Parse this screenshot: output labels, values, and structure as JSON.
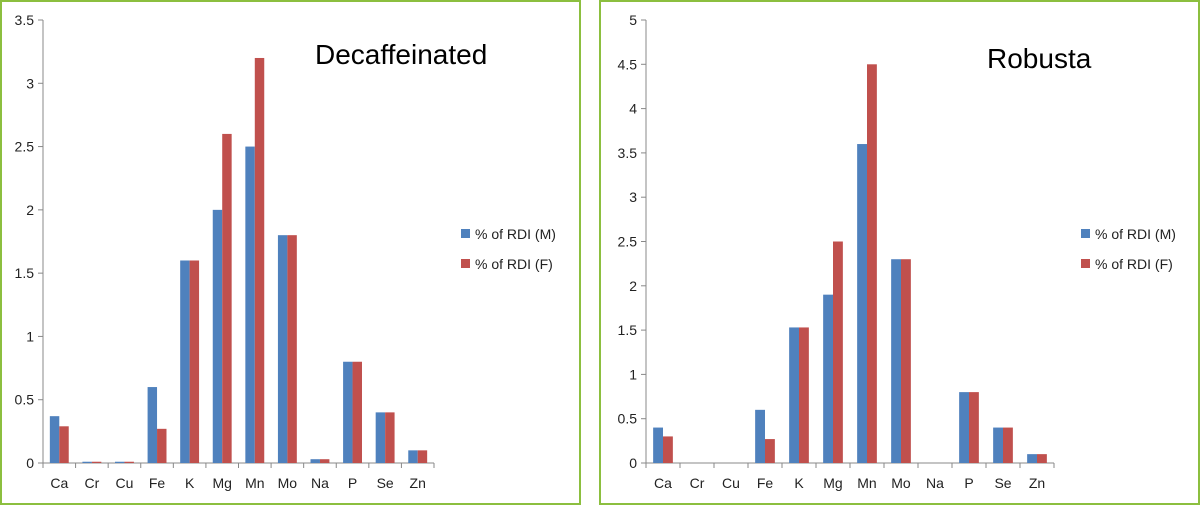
{
  "chart_data": [
    {
      "type": "bar",
      "title": "Decaffeinated",
      "categories": [
        "Ca",
        "Cr",
        "Cu",
        "Fe",
        "K",
        "Mg",
        "Mn",
        "Mo",
        "Na",
        "P",
        "Se",
        "Zn"
      ],
      "series": [
        {
          "name": "% of RDI (M)",
          "color": "#4f81bd",
          "values": [
            0.37,
            0.01,
            0.01,
            0.6,
            1.6,
            2.0,
            2.5,
            1.8,
            0.03,
            0.8,
            0.4,
            0.1
          ]
        },
        {
          "name": "% of RDI (F)",
          "color": "#c0504d",
          "values": [
            0.29,
            0.01,
            0.01,
            0.27,
            1.6,
            2.6,
            3.2,
            1.8,
            0.03,
            0.8,
            0.4,
            0.1
          ]
        }
      ],
      "ylim": [
        0,
        3.5
      ],
      "yticks": [
        "0",
        "0.5",
        "1",
        "1.5",
        "2",
        "2.5",
        "3",
        "3.5"
      ],
      "xlabel": "",
      "ylabel": "",
      "grid": false,
      "legend": "right"
    },
    {
      "type": "bar",
      "title": "Robusta",
      "categories": [
        "Ca",
        "Cr",
        "Cu",
        "Fe",
        "K",
        "Mg",
        "Mn",
        "Mo",
        "Na",
        "P",
        "Se",
        "Zn"
      ],
      "series": [
        {
          "name": "% of RDI (M)",
          "color": "#4f81bd",
          "values": [
            0.4,
            0,
            0,
            0.6,
            1.53,
            1.9,
            3.6,
            2.3,
            0,
            0.8,
            0.4,
            0.1
          ]
        },
        {
          "name": "% of RDI (F)",
          "color": "#c0504d",
          "values": [
            0.3,
            0,
            0,
            0.27,
            1.53,
            2.5,
            4.5,
            2.3,
            0,
            0.8,
            0.4,
            0.1
          ]
        }
      ],
      "ylim": [
        0,
        5
      ],
      "yticks": [
        "0",
        "0.5",
        "1",
        "1.5",
        "2",
        "2.5",
        "3",
        "3.5",
        "4",
        "4.5",
        "5"
      ],
      "xlabel": "",
      "ylabel": "",
      "grid": false,
      "legend": "right"
    }
  ]
}
